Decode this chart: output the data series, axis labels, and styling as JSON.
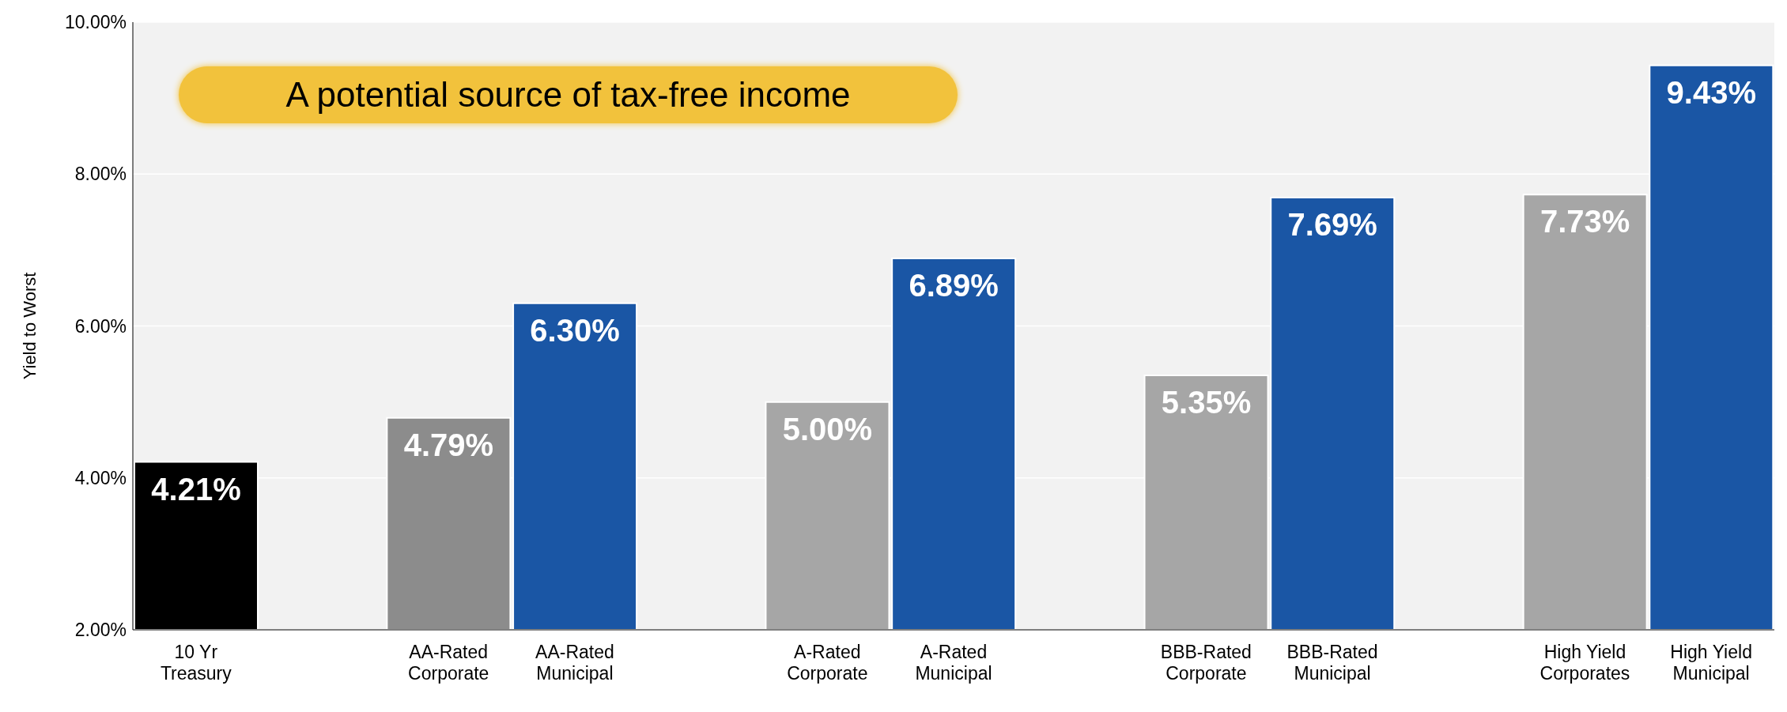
{
  "chart_data": {
    "type": "bar",
    "ylabel": "Yield to Worst",
    "categories": [
      "10 Yr\nTreasury",
      null,
      "AA-Rated\nCorporate",
      "AA-Rated\nMunicipal",
      null,
      "A-Rated\nCorporate",
      "A-Rated\nMunicipal",
      null,
      "BBB-Rated\nCorporate",
      "BBB-Rated\nMunicipal",
      null,
      "High Yield\nCorporates",
      "High Yield\nMunicipal"
    ],
    "values": [
      4.21,
      null,
      4.79,
      6.3,
      null,
      5.0,
      6.89,
      null,
      5.35,
      7.69,
      null,
      7.73,
      9.43
    ],
    "value_labels": [
      "4.21%",
      null,
      "4.79%",
      "6.30%",
      null,
      "5.00%",
      "6.89%",
      null,
      "5.35%",
      "7.69%",
      null,
      "7.73%",
      "9.43%"
    ],
    "colors": [
      "#000000",
      null,
      "#8c8c8c",
      "#1a56a5",
      null,
      "#a6a6a6",
      "#1a56a5",
      null,
      "#a6a6a6",
      "#1a56a5",
      null,
      "#a6a6a6",
      "#1a56a5"
    ],
    "ylim": [
      2,
      10
    ],
    "yticks": [
      {
        "value": 2,
        "label": "2.00%"
      },
      {
        "value": 4,
        "label": "4.00%"
      },
      {
        "value": 6,
        "label": "6.00%"
      },
      {
        "value": 8,
        "label": "8.00%"
      },
      {
        "value": 10,
        "label": "10.00%"
      }
    ],
    "grid": "y",
    "annotations": [
      "A potential source of tax-free income"
    ]
  }
}
